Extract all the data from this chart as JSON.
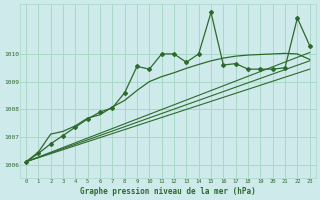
{
  "title": "Graphe pression niveau de la mer (hPa)",
  "bg_color": "#ceeaea",
  "grid_color": "#a8d8c8",
  "line_color": "#2d6a2d",
  "x_ticks": [
    0,
    1,
    2,
    3,
    4,
    5,
    6,
    7,
    8,
    9,
    10,
    11,
    12,
    13,
    14,
    15,
    16,
    17,
    18,
    19,
    20,
    21,
    22,
    23
  ],
  "xlim": [
    -0.5,
    23.5
  ],
  "ylim": [
    1005.5,
    1011.8
  ],
  "y_ticks": [
    1006,
    1007,
    1008,
    1009,
    1010
  ],
  "main_line": {
    "x": [
      0,
      1,
      2,
      3,
      4,
      5,
      6,
      7,
      8,
      9,
      10,
      11,
      12,
      13,
      14,
      15,
      16,
      17,
      18,
      19,
      20,
      21,
      22,
      23
    ],
    "y": [
      1006.1,
      1006.4,
      1006.75,
      1007.05,
      1007.35,
      1007.65,
      1007.9,
      1008.05,
      1008.6,
      1009.55,
      1009.45,
      1010.0,
      1010.0,
      1009.7,
      1010.0,
      1011.5,
      1009.6,
      1009.65,
      1009.45,
      1009.45,
      1009.45,
      1009.5,
      1011.3,
      1010.3
    ]
  },
  "smooth_line": {
    "x": [
      0,
      1,
      2,
      3,
      4,
      5,
      6,
      7,
      8,
      9,
      10,
      11,
      12,
      13,
      14,
      15,
      16,
      17,
      18,
      19,
      20,
      21,
      22,
      23
    ],
    "y": [
      1006.1,
      1006.45,
      1007.1,
      1007.2,
      1007.4,
      1007.68,
      1007.8,
      1008.08,
      1008.32,
      1008.68,
      1009.0,
      1009.18,
      1009.32,
      1009.48,
      1009.62,
      1009.75,
      1009.85,
      1009.92,
      1009.96,
      1009.98,
      1010.0,
      1010.02,
      1010.0,
      1009.8
    ]
  },
  "ref_line1": {
    "x": [
      0,
      23
    ],
    "y": [
      1006.1,
      1009.75
    ]
  },
  "ref_line2": {
    "x": [
      0,
      23
    ],
    "y": [
      1006.1,
      1010.05
    ]
  },
  "ref_line3": {
    "x": [
      0,
      23
    ],
    "y": [
      1006.1,
      1009.45
    ]
  }
}
